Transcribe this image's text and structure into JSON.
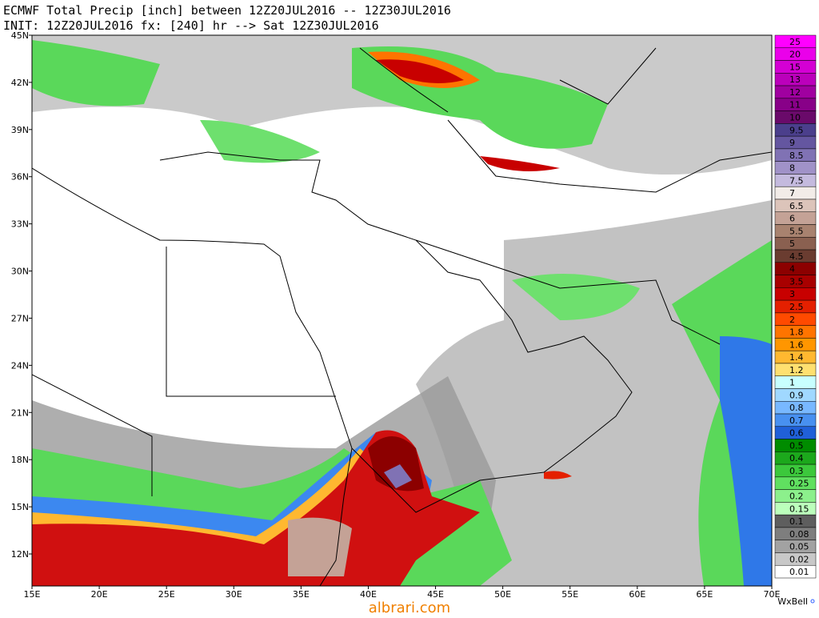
{
  "header": {
    "line1": "ECMWF Total Precip [inch] between 12Z20JUL2016 -- 12Z30JUL2016",
    "line2": "INIT: 12Z20JUL2016 fx: [240] hr --> Sat 12Z30JUL2016"
  },
  "lat_labels": [
    "45N",
    "42N",
    "39N",
    "36N",
    "33N",
    "30N",
    "27N",
    "24N",
    "21N",
    "18N",
    "15N",
    "12N"
  ],
  "lon_labels": [
    "15E",
    "20E",
    "25E",
    "30E",
    "35E",
    "40E",
    "45E",
    "50E",
    "55E",
    "60E",
    "65E",
    "70E"
  ],
  "colorbar": [
    {
      "label": "25",
      "color": "#ff00ff"
    },
    {
      "label": "20",
      "color": "#ea00ea"
    },
    {
      "label": "15",
      "color": "#d400d4"
    },
    {
      "label": "13",
      "color": "#bb00bb"
    },
    {
      "label": "12",
      "color": "#a000a0"
    },
    {
      "label": "11",
      "color": "#880088"
    },
    {
      "label": "10",
      "color": "#6a0a6a"
    },
    {
      "label": "9.5",
      "color": "#4b3f8c"
    },
    {
      "label": "9",
      "color": "#6456a0"
    },
    {
      "label": "8.5",
      "color": "#8072b4"
    },
    {
      "label": "8",
      "color": "#a092c8"
    },
    {
      "label": "7.5",
      "color": "#c4bade"
    },
    {
      "label": "7",
      "color": "#f2ece8"
    },
    {
      "label": "6.5",
      "color": "#dcc4ba"
    },
    {
      "label": "6",
      "color": "#c4a296"
    },
    {
      "label": "5.5",
      "color": "#a8826f"
    },
    {
      "label": "5",
      "color": "#8a6050"
    },
    {
      "label": "4.5",
      "color": "#6a3c30"
    },
    {
      "label": "4",
      "color": "#8c0000"
    },
    {
      "label": "3.5",
      "color": "#a80000"
    },
    {
      "label": "3",
      "color": "#c80000"
    },
    {
      "label": "2.5",
      "color": "#e42000"
    },
    {
      "label": "2",
      "color": "#ff4a00"
    },
    {
      "label": "1.8",
      "color": "#ff7400"
    },
    {
      "label": "1.6",
      "color": "#ff9600"
    },
    {
      "label": "1.4",
      "color": "#ffb830"
    },
    {
      "label": "1.2",
      "color": "#ffe070"
    },
    {
      "label": "1",
      "color": "#c8ffff"
    },
    {
      "label": "0.9",
      "color": "#a0d8ff"
    },
    {
      "label": "0.8",
      "color": "#78b8ff"
    },
    {
      "label": "0.7",
      "color": "#4890f0"
    },
    {
      "label": "0.6",
      "color": "#2060d8"
    },
    {
      "label": "0.5",
      "color": "#008c00"
    },
    {
      "label": "0.4",
      "color": "#1ca81c"
    },
    {
      "label": "0.3",
      "color": "#3cc83c"
    },
    {
      "label": "0.25",
      "color": "#60e060"
    },
    {
      "label": "0.2",
      "color": "#8cf08c"
    },
    {
      "label": "0.15",
      "color": "#bcffbc"
    },
    {
      "label": "0.1",
      "color": "#5e5e5e"
    },
    {
      "label": "0.08",
      "color": "#7e7e7e"
    },
    {
      "label": "0.05",
      "color": "#a2a2a2"
    },
    {
      "label": "0.02",
      "color": "#c8c8c8"
    },
    {
      "label": "0.01",
      "color": "#ffffff"
    }
  ],
  "credit": "WxBell",
  "watermark": "albrari.com"
}
